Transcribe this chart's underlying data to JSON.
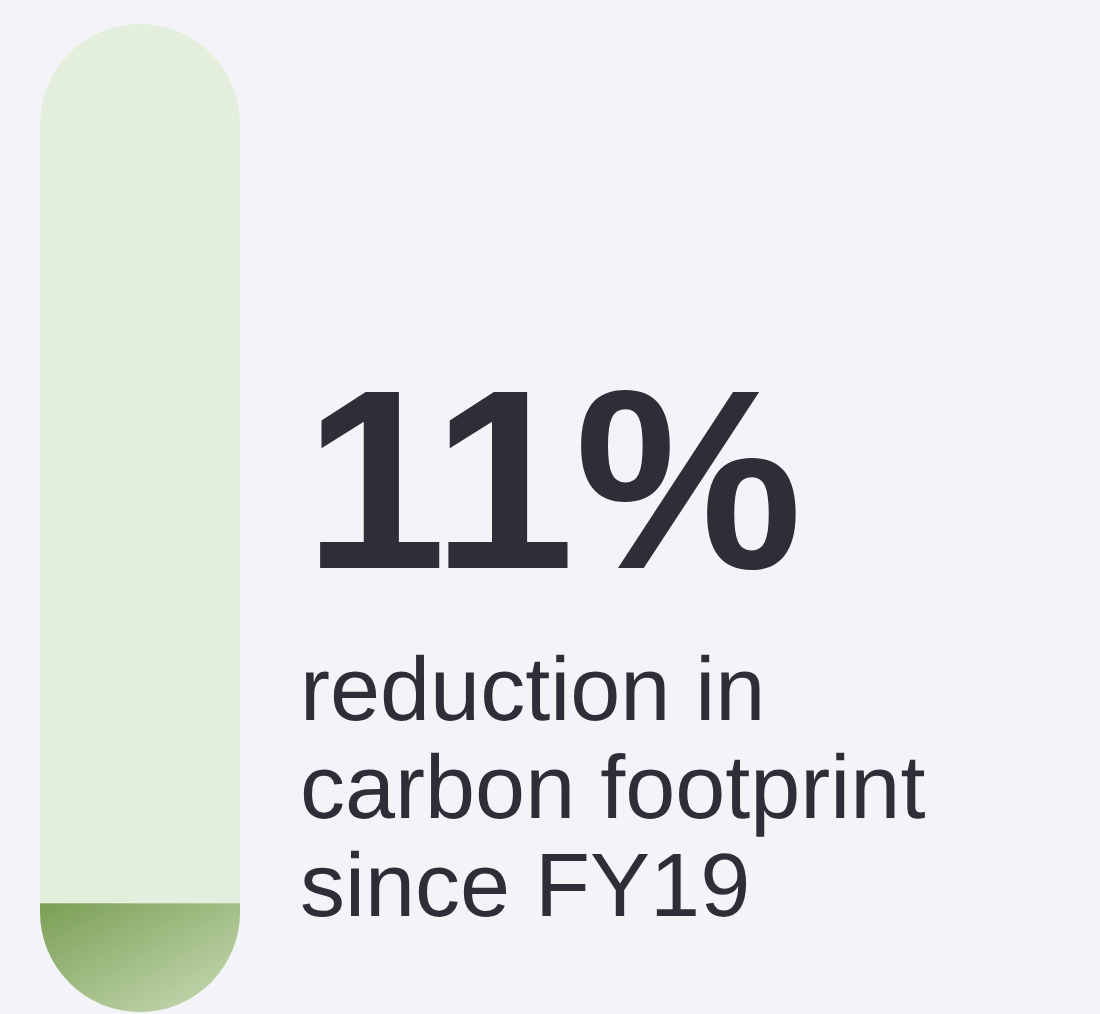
{
  "chart_data": {
    "type": "other",
    "values": [
      11
    ],
    "value_labels": [
      "11%"
    ],
    "subtitle": "reduction in carbon footprint since FY19"
  }
}
